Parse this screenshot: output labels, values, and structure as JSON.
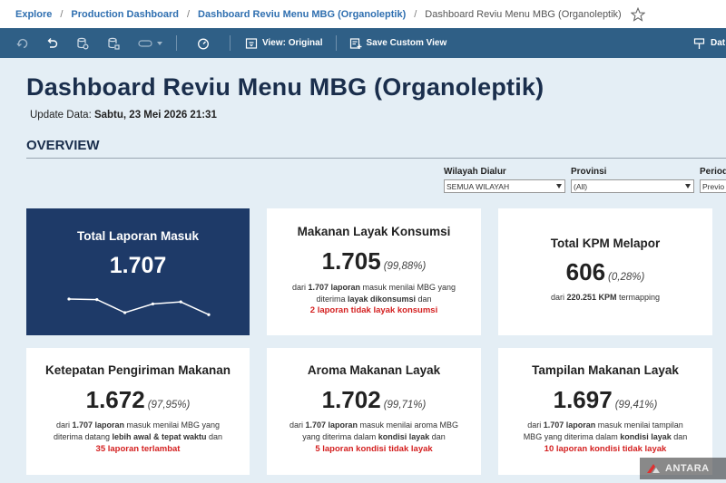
{
  "breadcrumb": {
    "items": [
      "Explore",
      "Production Dashboard",
      "Dashboard Reviu Menu MBG (Organoleptik)"
    ],
    "current": "Dashboard Reviu Menu MBG (Organoleptik)",
    "separator": "/"
  },
  "toolbar": {
    "view_label": "View: Original",
    "save_label": "Save Custom View",
    "data_label": "Dat"
  },
  "dashboard": {
    "title": "Dashboard Reviu Menu MBG (Organoleptik)",
    "update_label": "Update Data:",
    "update_value": "Sabtu, 23 Mei 2026 21:31",
    "section_title": "OVERVIEW"
  },
  "filters": [
    {
      "label": "Wilayah Dialur",
      "value": "SEMUA WILAYAH"
    },
    {
      "label": "Provinsi",
      "value": "(All)"
    },
    {
      "label": "Period",
      "value": "Previo"
    }
  ],
  "cards": {
    "total": {
      "title": "Total Laporan Masuk",
      "value": "1.707",
      "sparkline": [
        0.72,
        0.7,
        0.25,
        0.55,
        0.62,
        0.18
      ]
    },
    "layak": {
      "title": "Makanan Layak Konsumsi",
      "value": "1.705",
      "pct": "(99,88%)",
      "d1": "dari ",
      "d2": "1.707 laporan",
      "d3": " masuk menilai MBG yang",
      "d4": "diterima ",
      "d5": "layak dikonsumsi",
      "d6": " dan",
      "red": "2 laporan tidak layak konsumsi"
    },
    "kpm": {
      "title": "Total KPM Melapor",
      "value": "606",
      "pct": "(0,28%)",
      "d1": "dari ",
      "d2": "220.251 KPM",
      "d3": " termapping"
    },
    "ketepatan": {
      "title": "Ketepatan Pengiriman Makanan",
      "value": "1.672",
      "pct": "(97,95%)",
      "d1": "dari ",
      "d2": "1.707 laporan",
      "d3": " masuk menilai MBG yang",
      "d4": "diterima datang ",
      "d5": "lebih awal & tepat waktu",
      "d6": " dan",
      "red": "35 laporan terlambat"
    },
    "aroma": {
      "title": "Aroma Makanan Layak",
      "value": "1.702",
      "pct": "(99,71%)",
      "d1": "dari ",
      "d2": "1.707 laporan",
      "d3": " masuk menilai aroma MBG",
      "d4": "yang diterima dalam ",
      "d5": "kondisi layak",
      "d6": " dan",
      "red": "5 laporan kondisi tidak layak"
    },
    "tampilan": {
      "title": "Tampilan Makanan Layak",
      "value": "1.697",
      "pct": "(99,41%)",
      "d1": "dari ",
      "d2": "1.707 laporan",
      "d3": " masuk menilai tampilan",
      "d4": "MBG yang diterima dalam ",
      "d5": "kondisi layak",
      "d6": " dan",
      "red": "10 laporan kondisi tidak layak"
    }
  },
  "watermark": "ANTARA",
  "colors": {
    "toolbar": "#2f5f86",
    "dark_card": "#1e3a68",
    "accent_red": "#d42020",
    "link": "#2f6fb0"
  }
}
